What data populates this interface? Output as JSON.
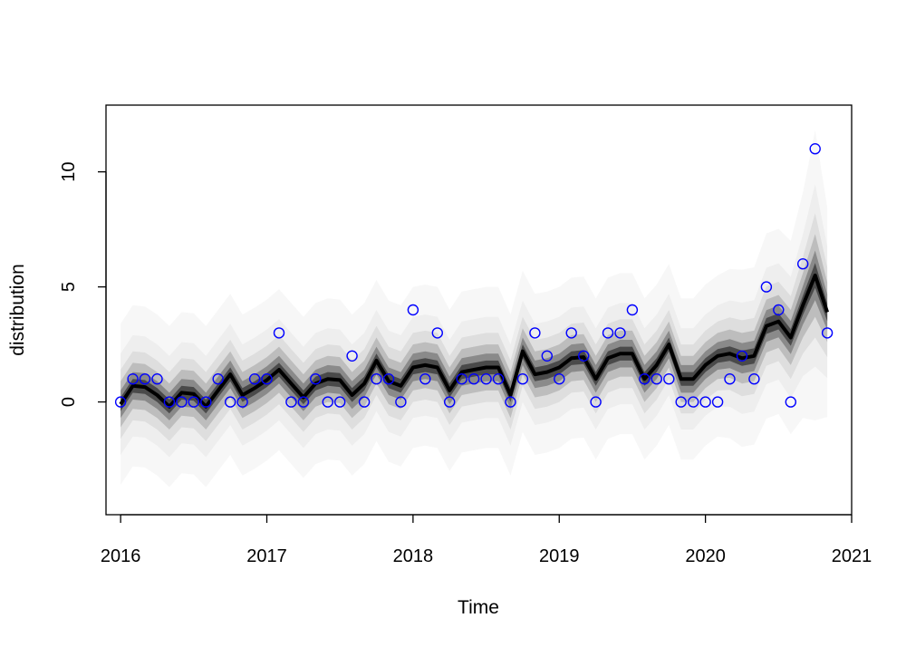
{
  "chart_data": {
    "type": "scatter",
    "title": "",
    "xlabel": "Time",
    "ylabel": "distribution",
    "xlim": [
      2015.9,
      2021.0
    ],
    "ylim": [
      -4.9,
      12.9
    ],
    "x_ticks": [
      2016,
      2017,
      2018,
      2019,
      2020,
      2021
    ],
    "y_ticks": [
      0,
      5,
      10
    ],
    "grid": false,
    "legend": "none",
    "colors": {
      "points": "#0000ff",
      "fan": "#000000",
      "axis": "#000000"
    },
    "points": {
      "x": [
        2016.0,
        2016.0833,
        2016.1667,
        2016.25,
        2016.3333,
        2016.4167,
        2016.5,
        2016.5833,
        2016.6667,
        2016.75,
        2016.8333,
        2016.9167,
        2017.0,
        2017.0833,
        2017.1667,
        2017.25,
        2017.3333,
        2017.4167,
        2017.5,
        2017.5833,
        2017.6667,
        2017.75,
        2017.8333,
        2017.9167,
        2018.0,
        2018.0833,
        2018.1667,
        2018.25,
        2018.3333,
        2018.4167,
        2018.5,
        2018.5833,
        2018.6667,
        2018.75,
        2018.8333,
        2018.9167,
        2019.0,
        2019.0833,
        2019.1667,
        2019.25,
        2019.3333,
        2019.4167,
        2019.5,
        2019.5833,
        2019.6667,
        2019.75,
        2019.8333,
        2019.9167,
        2020.0,
        2020.0833,
        2020.1667,
        2020.25,
        2020.3333,
        2020.4167,
        2020.5,
        2020.5833,
        2020.6667,
        2020.75,
        2020.8333
      ],
      "y": [
        0,
        1,
        1,
        1,
        0,
        0,
        0,
        0,
        1,
        0,
        0,
        1,
        1,
        3,
        0,
        0,
        1,
        0,
        0,
        2,
        0,
        1,
        1,
        0,
        4,
        1,
        3,
        0,
        1,
        1,
        1,
        1,
        0,
        1,
        3,
        2,
        1,
        3,
        2,
        0,
        3,
        3,
        4,
        1,
        1,
        1,
        0,
        0,
        0,
        0,
        1,
        2,
        1,
        5,
        4,
        0,
        6,
        11,
        3
      ]
    },
    "median": {
      "x": [
        2016.0,
        2016.0833,
        2016.1667,
        2016.25,
        2016.3333,
        2016.4167,
        2016.5,
        2016.5833,
        2016.6667,
        2016.75,
        2016.8333,
        2016.9167,
        2017.0,
        2017.0833,
        2017.1667,
        2017.25,
        2017.3333,
        2017.4167,
        2017.5,
        2017.5833,
        2017.6667,
        2017.75,
        2017.8333,
        2017.9167,
        2018.0,
        2018.0833,
        2018.1667,
        2018.25,
        2018.3333,
        2018.4167,
        2018.5,
        2018.5833,
        2018.6667,
        2018.75,
        2018.8333,
        2018.9167,
        2019.0,
        2019.0833,
        2019.1667,
        2019.25,
        2019.3333,
        2019.4167,
        2019.5,
        2019.5833,
        2019.6667,
        2019.75,
        2019.8333,
        2019.9167,
        2020.0,
        2020.0833,
        2020.1667,
        2020.25,
        2020.3333,
        2020.4167,
        2020.5,
        2020.5833,
        2020.6667,
        2020.75,
        2020.8333
      ],
      "y": [
        -0.1,
        0.7,
        0.65,
        0.3,
        -0.2,
        0.4,
        0.35,
        -0.2,
        0.5,
        1.2,
        0.3,
        0.6,
        0.95,
        1.4,
        0.8,
        0.2,
        0.8,
        1.0,
        0.95,
        0.3,
        0.8,
        1.8,
        0.9,
        0.7,
        1.5,
        1.6,
        1.5,
        0.5,
        1.3,
        1.4,
        1.5,
        1.5,
        0.3,
        2.2,
        1.2,
        1.3,
        1.5,
        1.9,
        1.95,
        1.0,
        1.9,
        2.1,
        2.1,
        1.0,
        1.6,
        2.5,
        1.0,
        1.0,
        1.6,
        2.0,
        2.1,
        1.9,
        2.0,
        3.3,
        3.5,
        2.8,
        4.2,
        5.5,
        3.9
      ]
    },
    "band_halfwidths": {
      "levels": [
        0.3,
        0.6,
        1.0,
        1.5,
        2.2,
        3.5
      ],
      "tail_scale": [
        1.0,
        1.0,
        1.0,
        1.0,
        1.0,
        1.0,
        1.0,
        1.0,
        1.0,
        1.0,
        1.0,
        1.0,
        1.0,
        1.0,
        1.0,
        1.0,
        1.0,
        1.0,
        1.0,
        1.0,
        1.0,
        1.0,
        1.0,
        1.0,
        1.0,
        1.0,
        1.0,
        1.0,
        1.0,
        1.0,
        1.0,
        1.0,
        1.0,
        1.0,
        1.0,
        1.0,
        1.0,
        1.0,
        1.0,
        1.0,
        1.0,
        1.0,
        1.0,
        1.0,
        1.0,
        1.0,
        1.0,
        1.0,
        1.0,
        1.0,
        1.05,
        1.1,
        1.1,
        1.15,
        1.15,
        1.2,
        1.4,
        1.8,
        1.3
      ]
    }
  }
}
